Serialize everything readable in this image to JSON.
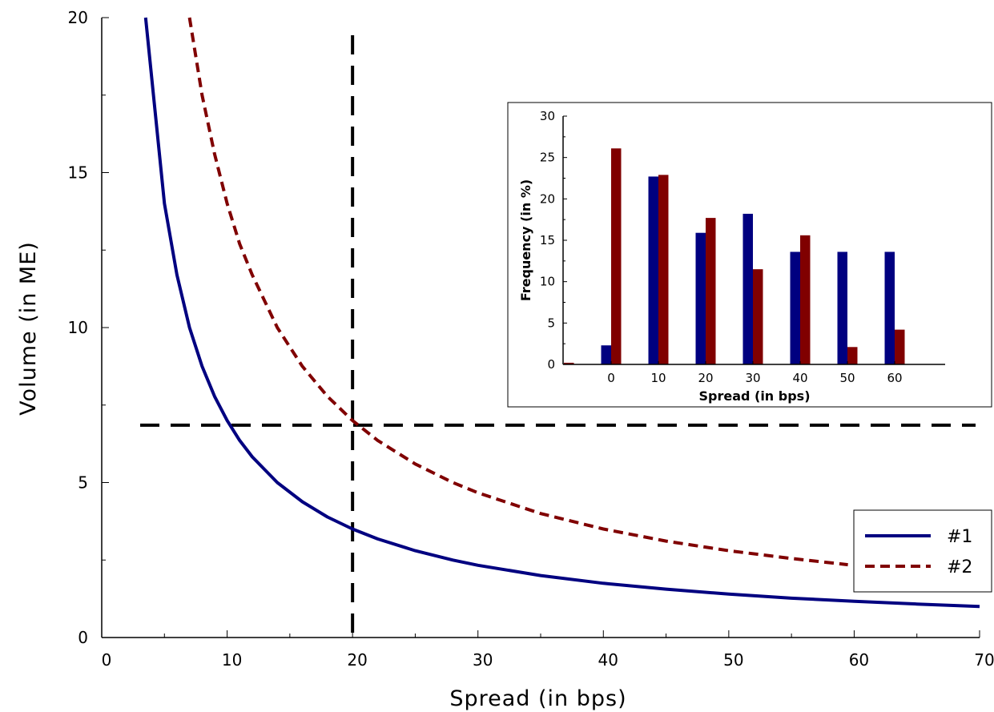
{
  "chart_data": [
    {
      "type": "line",
      "xlabel": "Spread (in bps)",
      "ylabel": "Volume (in ME)",
      "xlim": [
        0,
        70
      ],
      "ylim": [
        0,
        20
      ],
      "xticks": [
        "0",
        "10",
        "20",
        "30",
        "40",
        "50",
        "60",
        "70"
      ],
      "yticks": [
        "0",
        "5",
        "10",
        "15",
        "20"
      ],
      "legend_position": "bottom-right",
      "series": [
        {
          "name": "#1",
          "style": "solid",
          "color": "#000080",
          "x": [
            3.5,
            5,
            6,
            7,
            8,
            9,
            10,
            11,
            12,
            14,
            16,
            18,
            20,
            22,
            25,
            28,
            30,
            35,
            40,
            45,
            50,
            55,
            60,
            65,
            70
          ],
          "y": [
            20,
            14.0,
            11.7,
            10.0,
            8.75,
            7.78,
            7.0,
            6.36,
            5.83,
            5.0,
            4.38,
            3.89,
            3.5,
            3.18,
            2.8,
            2.5,
            2.33,
            2.0,
            1.75,
            1.56,
            1.4,
            1.27,
            1.17,
            1.08,
            1.0
          ]
        },
        {
          "name": "#2",
          "style": "dashed",
          "color": "#800000",
          "x": [
            7,
            8,
            9,
            10,
            11,
            12,
            14,
            16,
            18,
            20,
            22,
            25,
            28,
            30,
            35,
            40,
            45,
            50,
            55,
            59.5
          ],
          "y": [
            20,
            17.5,
            15.6,
            14.0,
            12.7,
            11.7,
            10.0,
            8.75,
            7.78,
            7.0,
            6.36,
            5.6,
            5.0,
            4.67,
            4.0,
            3.5,
            3.11,
            2.8,
            2.55,
            2.35
          ]
        }
      ],
      "reference_lines": [
        {
          "orientation": "horizontal",
          "y": 6.85,
          "style": "dashed",
          "color": "#000000"
        },
        {
          "orientation": "vertical",
          "x": 20,
          "style": "dashed",
          "color": "#000000"
        }
      ]
    },
    {
      "type": "bar",
      "inset": true,
      "xlabel": "Spread (in bps)",
      "ylabel": "Frequency (in %)",
      "ylim": [
        0,
        30
      ],
      "yticks": [
        "0",
        "5",
        "10",
        "15",
        "20",
        "25",
        "30"
      ],
      "categories": [
        "",
        "0",
        "10",
        "20",
        "30",
        "40",
        "50",
        "60"
      ],
      "series": [
        {
          "color": "#000080",
          "values": [
            0,
            2.3,
            22.7,
            15.9,
            18.2,
            13.6,
            13.6,
            13.6
          ]
        },
        {
          "color": "#800000",
          "values": [
            0.2,
            26.1,
            22.9,
            17.7,
            11.5,
            15.6,
            2.1,
            4.2
          ]
        }
      ]
    }
  ]
}
